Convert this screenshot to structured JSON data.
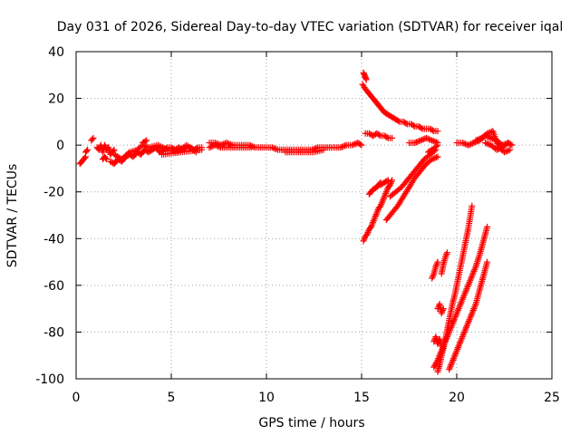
{
  "chart_data": {
    "type": "scatter",
    "title": "Day 031 of 2026, Sidereal Day-to-day VTEC variation (SDTVAR) for receiver iqal",
    "xlabel": "GPS time / hours",
    "ylabel": "SDTVAR / TECUs",
    "xlim": [
      0,
      25
    ],
    "ylim": [
      -100,
      40
    ],
    "xticks": [
      0,
      5,
      10,
      15,
      20,
      25
    ],
    "yticks": [
      -100,
      -80,
      -60,
      -40,
      -20,
      0,
      20,
      40
    ],
    "grid": true,
    "marker": "plus",
    "color": "#ff0000",
    "series": [
      {
        "segments": [
          {
            "x": [
              0.2,
              0.3,
              0.4,
              0.5
            ],
            "y": [
              -8,
              -7,
              -6,
              -5
            ]
          },
          {
            "x": [
              0.5,
              0.6
            ],
            "y": [
              -3,
              -2
            ]
          },
          {
            "x": [
              0.8,
              0.9
            ],
            "y": [
              2,
              3
            ]
          },
          {
            "x": [
              1.1,
              1.2,
              1.3,
              1.4,
              1.5,
              1.6,
              1.7,
              1.8,
              1.9,
              2.0
            ],
            "y": [
              -1,
              -2,
              0,
              -3,
              0,
              -2,
              -1,
              -4,
              -3,
              -2
            ]
          },
          {
            "x": [
              1.4,
              1.5,
              1.6
            ],
            "y": [
              -6,
              -5,
              -6
            ]
          },
          {
            "x": [
              1.8,
              2.0,
              2.2,
              2.4,
              2.6,
              2.8,
              3.0,
              3.2,
              3.4,
              3.6,
              3.8,
              4.0,
              4.2,
              4.4,
              4.6,
              4.8,
              5.0,
              5.2,
              5.4,
              5.6,
              5.8,
              6.0,
              6.2,
              6.4,
              6.6
            ],
            "y": [
              -7,
              -8,
              -6,
              -7,
              -5,
              -4,
              -5,
              -3,
              -4,
              -2,
              -3,
              -2,
              -1,
              -3,
              -2,
              -1,
              -1,
              -2,
              -1,
              -2,
              -1,
              -1,
              -2,
              -1,
              -1
            ]
          },
          {
            "x": [
              2.0,
              2.4,
              2.8,
              3.2,
              3.5,
              3.8,
              4.3,
              4.8,
              5.3,
              5.8,
              6.3
            ],
            "y": [
              -4,
              -6,
              -3,
              -2,
              0,
              -1,
              0,
              -2,
              -3,
              0,
              -3
            ]
          },
          {
            "x": [
              3.5,
              3.7
            ],
            "y": [
              1,
              2
            ]
          },
          {
            "x": [
              4.5,
              5.5,
              6.6
            ],
            "y": [
              -4,
              -3,
              -2
            ]
          },
          {
            "x": [
              7.0,
              7.3,
              7.6,
              7.9,
              8.2,
              8.5,
              8.8,
              9.1,
              9.4,
              9.7,
              10.0,
              10.3,
              10.6,
              10.9,
              11.2,
              11.5,
              11.8,
              12.1,
              12.4,
              12.7,
              13.0,
              13.3,
              13.6,
              13.9,
              14.2,
              14.5,
              14.8,
              15.0
            ],
            "y": [
              1,
              1,
              0,
              1,
              0,
              0,
              0,
              0,
              -1,
              -1,
              -1,
              -1,
              -2,
              -2,
              -2,
              -2,
              -2,
              -2,
              -2,
              -1,
              -1,
              -1,
              -1,
              -1,
              0,
              0,
              1,
              0
            ]
          },
          {
            "x": [
              7.0,
              7.3,
              7.6,
              8.0,
              8.4,
              8.8,
              9.2
            ],
            "y": [
              -1,
              0,
              -1,
              -1,
              -1,
              -1,
              -1
            ]
          },
          {
            "x": [
              11.0,
              11.5,
              12.0,
              12.5,
              13.0
            ],
            "y": [
              -3,
              -3,
              -3,
              -3,
              -2
            ]
          },
          {
            "x": [
              15.1,
              15.15,
              15.2,
              15.25
            ],
            "y": [
              31,
              30,
              29,
              28
            ]
          },
          {
            "x": [
              15.05,
              15.2,
              15.4,
              15.6,
              15.8,
              16.0,
              16.2,
              16.4,
              16.6,
              16.8,
              17.0,
              17.2,
              17.4,
              17.6,
              17.8,
              18.0,
              18.2,
              18.4,
              18.6,
              18.8,
              19.0
            ],
            "y": [
              26,
              24,
              22,
              20,
              18,
              16,
              14,
              13,
              12,
              11,
              10,
              10,
              9,
              9,
              8,
              8,
              7,
              7,
              7,
              6,
              6
            ]
          },
          {
            "x": [
              15.2,
              15.4,
              15.6,
              15.8,
              16.0,
              16.2,
              16.4,
              16.6
            ],
            "y": [
              5,
              5,
              4,
              5,
              4,
              4,
              3,
              3
            ]
          },
          {
            "x": [
              15.1,
              15.2,
              15.3,
              15.4,
              15.5,
              15.6,
              15.7,
              15.8,
              15.9,
              16.0,
              16.1,
              16.2,
              16.3,
              16.4,
              16.5,
              16.6
            ],
            "y": [
              -41,
              -39,
              -38,
              -36,
              -35,
              -33,
              -31,
              -29,
              -27,
              -26,
              -24,
              -22,
              -20,
              -18,
              -17,
              -15
            ]
          },
          {
            "x": [
              15.4,
              15.6,
              15.8,
              16.0
            ],
            "y": [
              -21,
              -19,
              -18,
              -16
            ]
          },
          {
            "x": [
              16.0,
              16.2,
              16.4
            ],
            "y": [
              -17,
              -16,
              -15
            ]
          },
          {
            "x": [
              16.3,
              16.6,
              16.9,
              17.2,
              17.5,
              17.8,
              18.1,
              18.4,
              18.7,
              19.0
            ],
            "y": [
              -32,
              -29,
              -26,
              -22,
              -18,
              -14,
              -11,
              -8,
              -6,
              -5
            ]
          },
          {
            "x": [
              16.5,
              16.8,
              17.1,
              17.4,
              17.7,
              18.0,
              18.3,
              18.6,
              18.9
            ],
            "y": [
              -22,
              -20,
              -18,
              -15,
              -12,
              -9,
              -6,
              -4,
              -2
            ]
          },
          {
            "x": [
              17.5,
              17.8,
              18.1,
              18.4,
              18.7,
              19.0
            ],
            "y": [
              1,
              1,
              2,
              3,
              2,
              1
            ]
          },
          {
            "x": [
              18.5,
              18.7,
              19.0
            ],
            "y": [
              -3,
              -2,
              0
            ]
          },
          {
            "x": [
              18.7,
              18.8,
              18.9,
              19.0
            ],
            "y": [
              -57,
              -55,
              -52,
              -50
            ]
          },
          {
            "x": [
              19.0,
              19.1,
              19.2,
              19.3,
              19.4,
              19.5,
              19.6,
              19.7,
              19.8,
              19.9,
              20.0,
              20.1,
              20.2,
              20.3,
              20.4,
              20.5,
              20.6,
              20.7,
              20.8
            ],
            "y": [
              -97,
              -94,
              -90,
              -87,
              -83,
              -79,
              -75,
              -71,
              -67,
              -64,
              -60,
              -56,
              -52,
              -48,
              -44,
              -40,
              -36,
              -31,
              -26
            ]
          },
          {
            "x": [
              18.8,
              19.0,
              19.2,
              19.4,
              19.6,
              19.8,
              20.0,
              20.2,
              20.4,
              20.6,
              20.8,
              21.0,
              21.2,
              21.4,
              21.6
            ],
            "y": [
              -95,
              -92,
              -88,
              -84,
              -80,
              -76,
              -72,
              -68,
              -64,
              -60,
              -56,
              -52,
              -47,
              -41,
              -35
            ]
          },
          {
            "x": [
              19.6,
              19.8,
              20.0,
              20.2,
              20.4,
              20.6,
              20.8,
              21.0,
              21.2,
              21.4,
              21.6
            ],
            "y": [
              -96,
              -92,
              -88,
              -84,
              -80,
              -76,
              -72,
              -68,
              -62,
              -56,
              -50
            ]
          },
          {
            "x": [
              18.8,
              18.9,
              19.0,
              19.1,
              19.2
            ],
            "y": [
              -84,
              -82,
              -85,
              -83,
              -86
            ]
          },
          {
            "x": [
              19.0,
              19.1,
              19.2,
              19.3
            ],
            "y": [
              -70,
              -68,
              -72,
              -70
            ]
          },
          {
            "x": [
              19.2,
              19.3,
              19.4,
              19.5
            ],
            "y": [
              -55,
              -51,
              -48,
              -46
            ]
          },
          {
            "x": [
              20.0,
              20.3,
              20.6,
              20.9,
              21.2,
              21.5,
              21.8,
              22.1,
              22.4,
              22.7,
              22.9
            ],
            "y": [
              1,
              1,
              0,
              1,
              2,
              4,
              3,
              2,
              0,
              1,
              0
            ]
          },
          {
            "x": [
              21.0,
              21.3,
              21.6,
              21.9,
              22.2,
              22.5,
              22.8
            ],
            "y": [
              2,
              3,
              5,
              6,
              -1,
              -3,
              -2
            ]
          },
          {
            "x": [
              21.5,
              21.8,
              22.1,
              22.4,
              22.7
            ],
            "y": [
              1,
              0,
              -2,
              -1,
              1
            ]
          }
        ]
      }
    ]
  }
}
